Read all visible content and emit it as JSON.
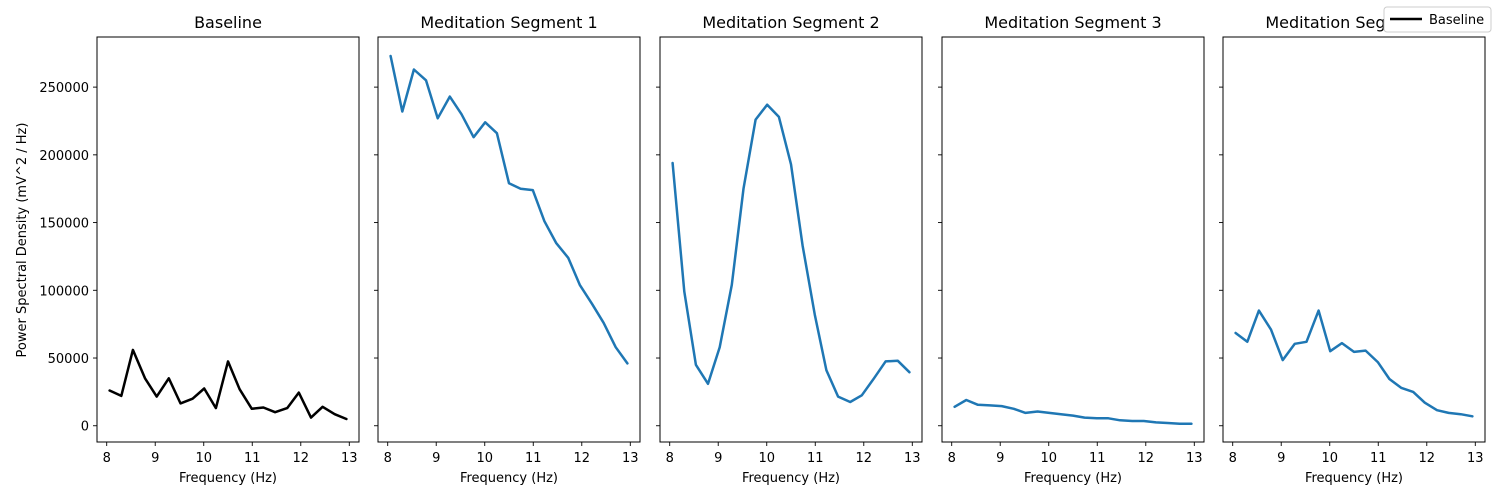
{
  "legend": {
    "label": "Baseline",
    "color": "#000000"
  },
  "ylabel": "Power Spectral Density (mV^2 / Hz)",
  "chart_data": {
    "type": "line",
    "xlim": [
      7.8,
      13.2
    ],
    "ylim": [
      -12000,
      287000
    ],
    "xticks": [
      8,
      9,
      10,
      11,
      12,
      13
    ],
    "yticks": [
      0,
      50000,
      100000,
      150000,
      200000,
      250000
    ],
    "grid": false,
    "legend_placement": "top-right",
    "x": [
      8.06,
      8.3,
      8.54,
      8.79,
      9.03,
      9.28,
      9.52,
      9.77,
      10.01,
      10.25,
      10.5,
      10.74,
      10.99,
      11.23,
      11.47,
      11.72,
      11.96,
      12.21,
      12.45,
      12.7,
      12.94
    ],
    "panels": [
      {
        "title": "Baseline",
        "xlabel": "Frequency (Hz)",
        "color": "#000000",
        "values": [
          26000,
          22000,
          56000,
          35000,
          21500,
          35000,
          16500,
          20000,
          27500,
          13000,
          47500,
          27000,
          12500,
          13500,
          10000,
          13000,
          24500,
          6000,
          14000,
          8500,
          5000
        ]
      },
      {
        "title": "Meditation Segment 1",
        "xlabel": "Frequency (Hz)",
        "color": "#1f77b4",
        "values": [
          273000,
          232000,
          263000,
          255000,
          227000,
          243000,
          230000,
          213000,
          224000,
          216000,
          179000,
          175000,
          174000,
          151000,
          135000,
          124000,
          104000,
          90000,
          76000,
          58000,
          46000
        ]
      },
      {
        "title": "Meditation Segment 2",
        "xlabel": "Frequency (Hz)",
        "color": "#1f77b4",
        "values": [
          194000,
          99000,
          45000,
          31000,
          58000,
          104000,
          175000,
          226000,
          237000,
          228000,
          193000,
          133000,
          82000,
          41000,
          21500,
          17500,
          22500,
          35000,
          47500,
          48000,
          39500
        ]
      },
      {
        "title": "Meditation Segment 3",
        "xlabel": "Frequency (Hz)",
        "color": "#1f77b4",
        "values": [
          14000,
          19000,
          15500,
          15000,
          14500,
          12500,
          9500,
          10500,
          9500,
          8500,
          7500,
          6000,
          5500,
          5500,
          4000,
          3500,
          3500,
          2500,
          2000,
          1500,
          1500
        ]
      },
      {
        "title": "Meditation Segment 4",
        "xlabel": "Frequency (Hz)",
        "color": "#1f77b4",
        "values": [
          68500,
          62000,
          85000,
          71000,
          48500,
          60500,
          62000,
          85000,
          55000,
          61000,
          54500,
          55500,
          47000,
          34500,
          28000,
          25000,
          17000,
          11500,
          9500,
          8500,
          7000
        ]
      }
    ]
  }
}
